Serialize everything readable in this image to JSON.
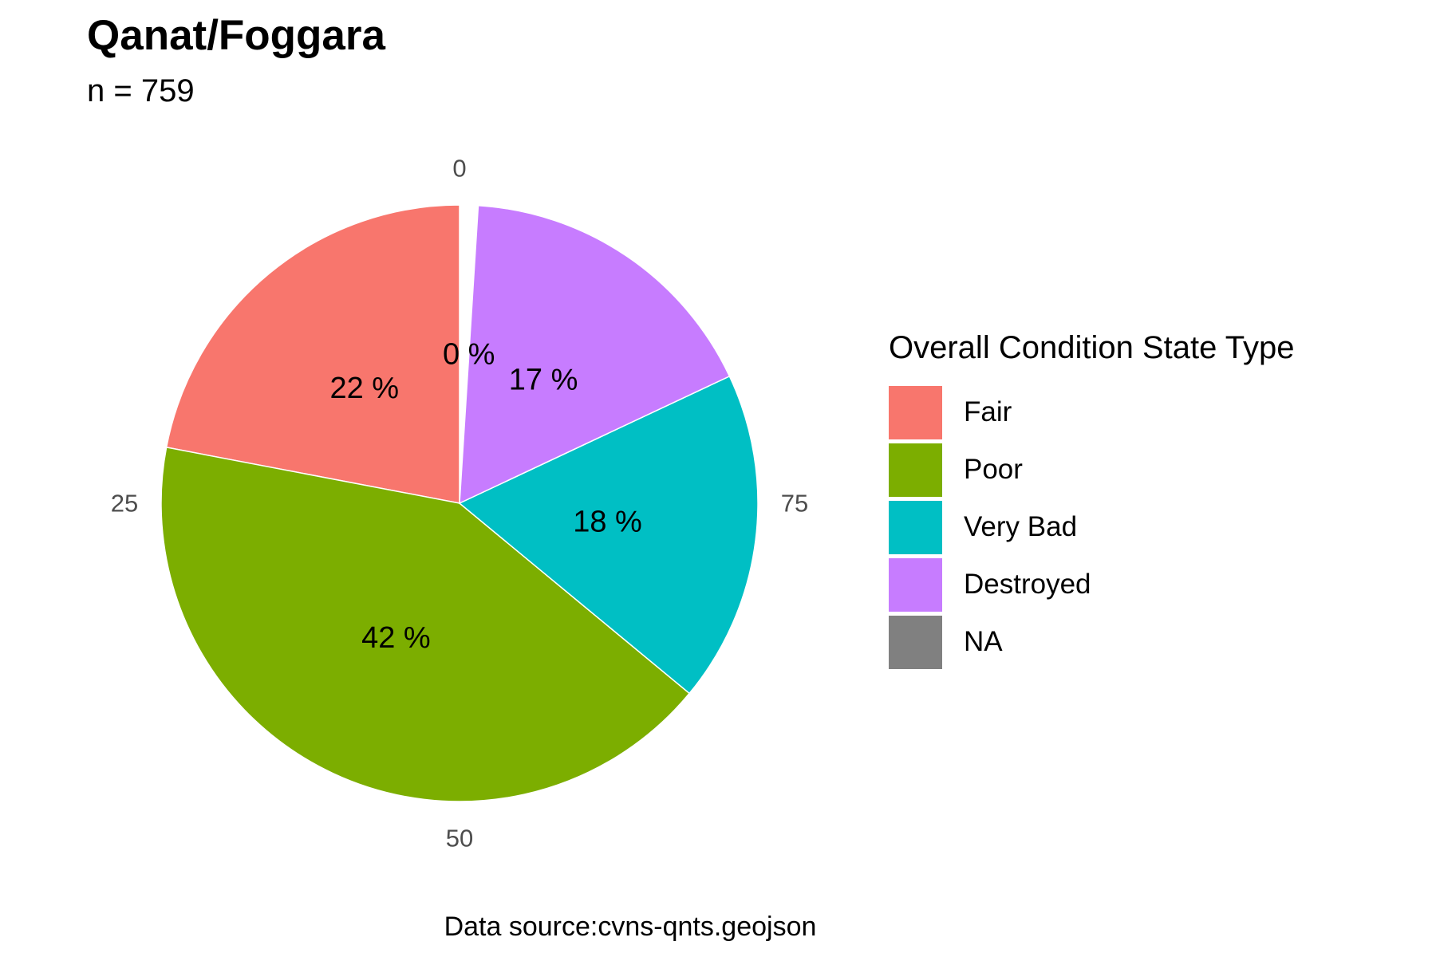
{
  "chart_data": {
    "type": "pie",
    "title": "Qanat/Foggara",
    "subtitle": "n = 759",
    "caption": "Data source:cvns-qnts.geojson",
    "legend_title": "Overall Condition State Type",
    "legend_position": "right",
    "slices": [
      {
        "label": "Fair",
        "value": 22,
        "data_label": "22 %",
        "color": "#F8766D"
      },
      {
        "label": "Poor",
        "value": 42,
        "data_label": "42 %",
        "color": "#7CAE00"
      },
      {
        "label": "Very Bad",
        "value": 18,
        "data_label": "18 %",
        "color": "#00BFC4"
      },
      {
        "label": "Destroyed",
        "value": 17,
        "data_label": "17 %",
        "color": "#C77CFF"
      },
      {
        "label": "NA",
        "value": 0,
        "data_label": "0 %",
        "color": "#808080"
      }
    ],
    "axis_ticks": [
      "0",
      "25",
      "50",
      "75"
    ],
    "axis_tick_values": [
      0,
      25,
      50,
      75
    ],
    "axis_max": 100,
    "start_angle": "12 o'clock",
    "direction": "counterclockwise"
  }
}
